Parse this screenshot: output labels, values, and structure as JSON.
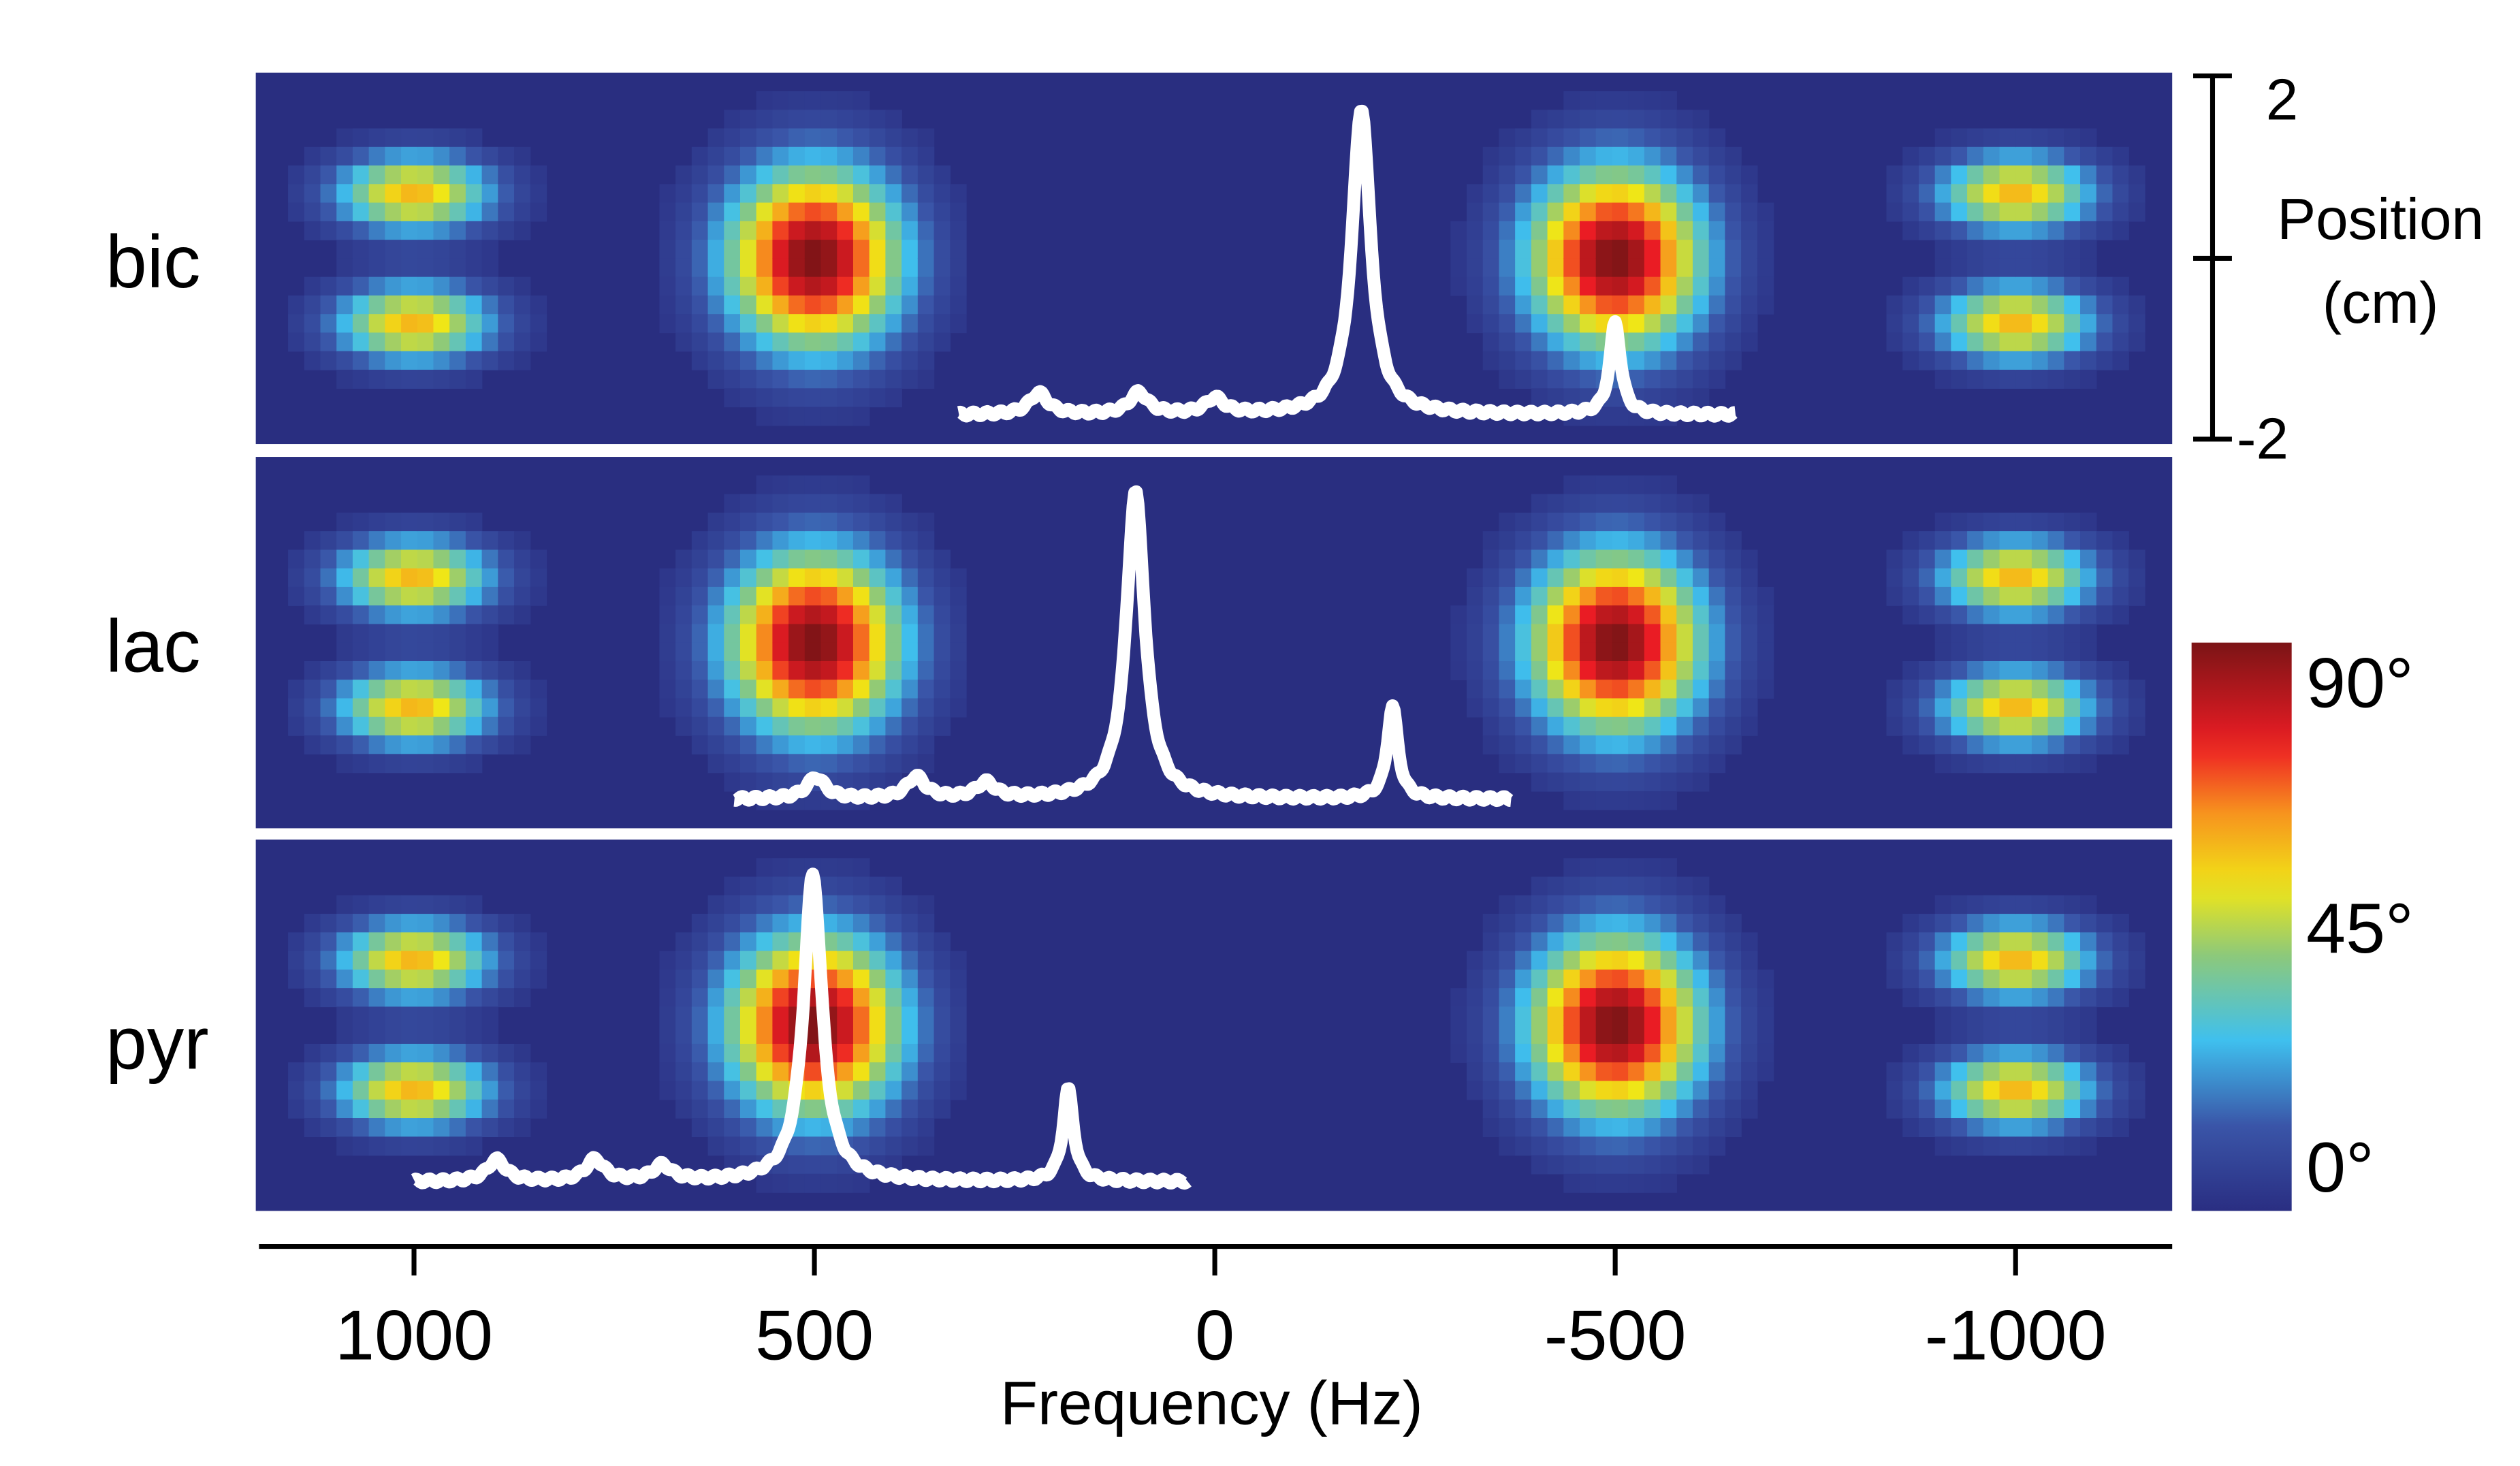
{
  "chart_data": {
    "type": "heatmap",
    "xlabel": "Frequency (Hz)",
    "xlim": [
      1190,
      -1190
    ],
    "xticks": [
      1000,
      500,
      0,
      -500,
      -1000
    ],
    "xtick_labels": [
      "1000",
      "500",
      "0",
      "-500",
      "-1000"
    ],
    "ylabel": "Position (cm)",
    "ylabel_lines": [
      "Position",
      "(cm)"
    ],
    "ylim": [
      -2,
      2
    ],
    "ytick_labels": [
      "2",
      "-2"
    ],
    "colorbar": {
      "range": [
        0,
        90
      ],
      "ticks": [
        90,
        45,
        0
      ],
      "tick_labels": [
        "90°",
        "45°",
        "0°"
      ],
      "colormap": "jet",
      "colors": [
        "#2a2e82",
        "#3a55a8",
        "#3fc0ee",
        "#8dc97a",
        "#f0e616",
        "#f7931e",
        "#ed1c24",
        "#7b1416"
      ]
    },
    "background_color": "#292e80",
    "flip_angle_map": {
      "center_lobes": [
        {
          "freq": 500,
          "position": 0,
          "peak_deg": 90
        },
        {
          "freq": -500,
          "position": 0,
          "peak_deg": 90
        }
      ],
      "side_lobes": [
        {
          "freq": 1000,
          "position": 0.7,
          "peak_deg": 58
        },
        {
          "freq": 1000,
          "position": -0.7,
          "peak_deg": 58
        },
        {
          "freq": -1000,
          "position": 0.7,
          "peak_deg": 58
        },
        {
          "freq": -1000,
          "position": -0.7,
          "peak_deg": 58
        }
      ]
    },
    "panels": [
      {
        "label": "bic",
        "spectrum": {
          "range": [
            320,
            -650
          ],
          "peaks": [
            {
              "freq": 220,
              "height": 0.07
            },
            {
              "freq": 95,
              "height": 0.07
            },
            {
              "freq": 0,
              "height": 0.05
            },
            {
              "freq": -183,
              "height": 1.0
            },
            {
              "freq": -500,
              "height": 0.3
            }
          ]
        }
      },
      {
        "label": "lac",
        "spectrum": {
          "range": [
            600,
            -370
          ],
          "peaks": [
            {
              "freq": 498,
              "height": 0.07
            },
            {
              "freq": 373,
              "height": 0.07
            },
            {
              "freq": 286,
              "height": 0.05
            },
            {
              "freq": 99,
              "height": 1.0
            },
            {
              "freq": -222,
              "height": 0.3
            }
          ]
        }
      },
      {
        "label": "pyr",
        "spectrum": {
          "range": [
            1000,
            34
          ],
          "peaks": [
            {
              "freq": 897,
              "height": 0.07
            },
            {
              "freq": 774,
              "height": 0.07
            },
            {
              "freq": 690,
              "height": 0.05
            },
            {
              "freq": 502,
              "height": 1.0
            },
            {
              "freq": 183,
              "height": 0.3
            }
          ]
        }
      }
    ]
  }
}
